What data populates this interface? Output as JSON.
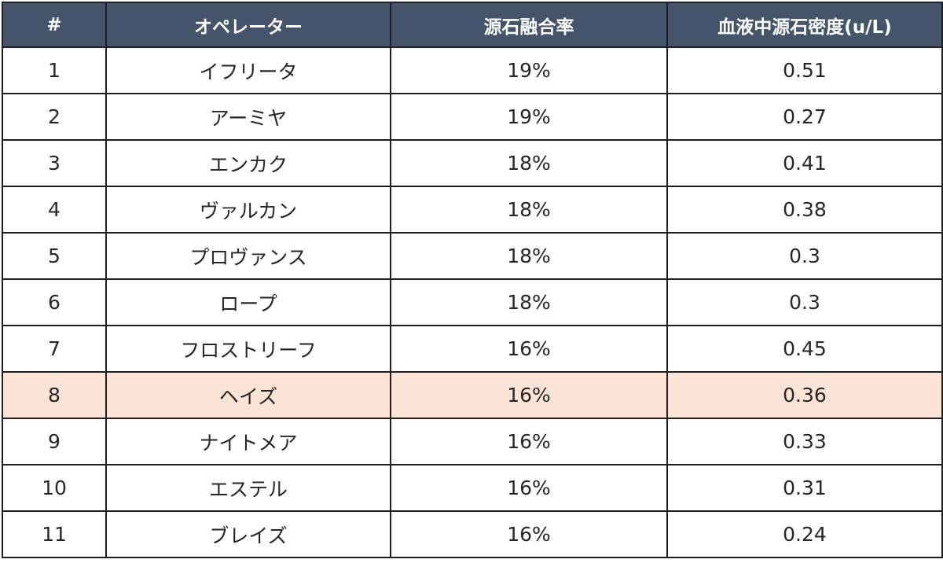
{
  "table": {
    "headers": [
      "#",
      "オペレーター",
      "源石融合率",
      "血液中源石密度(u/L)"
    ],
    "highlight_color": "#fbe4d6",
    "header_color": "#44546a",
    "rows": [
      {
        "num": "1",
        "operator": "イフリータ",
        "fusion": "19%",
        "density": "0.51",
        "highlighted": false
      },
      {
        "num": "2",
        "operator": "アーミヤ",
        "fusion": "19%",
        "density": "0.27",
        "highlighted": false
      },
      {
        "num": "3",
        "operator": "エンカク",
        "fusion": "18%",
        "density": "0.41",
        "highlighted": false
      },
      {
        "num": "4",
        "operator": "ヴァルカン",
        "fusion": "18%",
        "density": "0.38",
        "highlighted": false
      },
      {
        "num": "5",
        "operator": "プロヴァンス",
        "fusion": "18%",
        "density": "0.3",
        "highlighted": false
      },
      {
        "num": "6",
        "operator": "ロープ",
        "fusion": "18%",
        "density": "0.3",
        "highlighted": false
      },
      {
        "num": "7",
        "operator": "フロストリーフ",
        "fusion": "16%",
        "density": "0.45",
        "highlighted": false
      },
      {
        "num": "8",
        "operator": "ヘイズ",
        "fusion": "16%",
        "density": "0.36",
        "highlighted": true
      },
      {
        "num": "9",
        "operator": "ナイトメア",
        "fusion": "16%",
        "density": "0.33",
        "highlighted": false
      },
      {
        "num": "10",
        "operator": "エステル",
        "fusion": "16%",
        "density": "0.31",
        "highlighted": false
      },
      {
        "num": "11",
        "operator": "ブレイズ",
        "fusion": "16%",
        "density": "0.24",
        "highlighted": false
      }
    ]
  }
}
